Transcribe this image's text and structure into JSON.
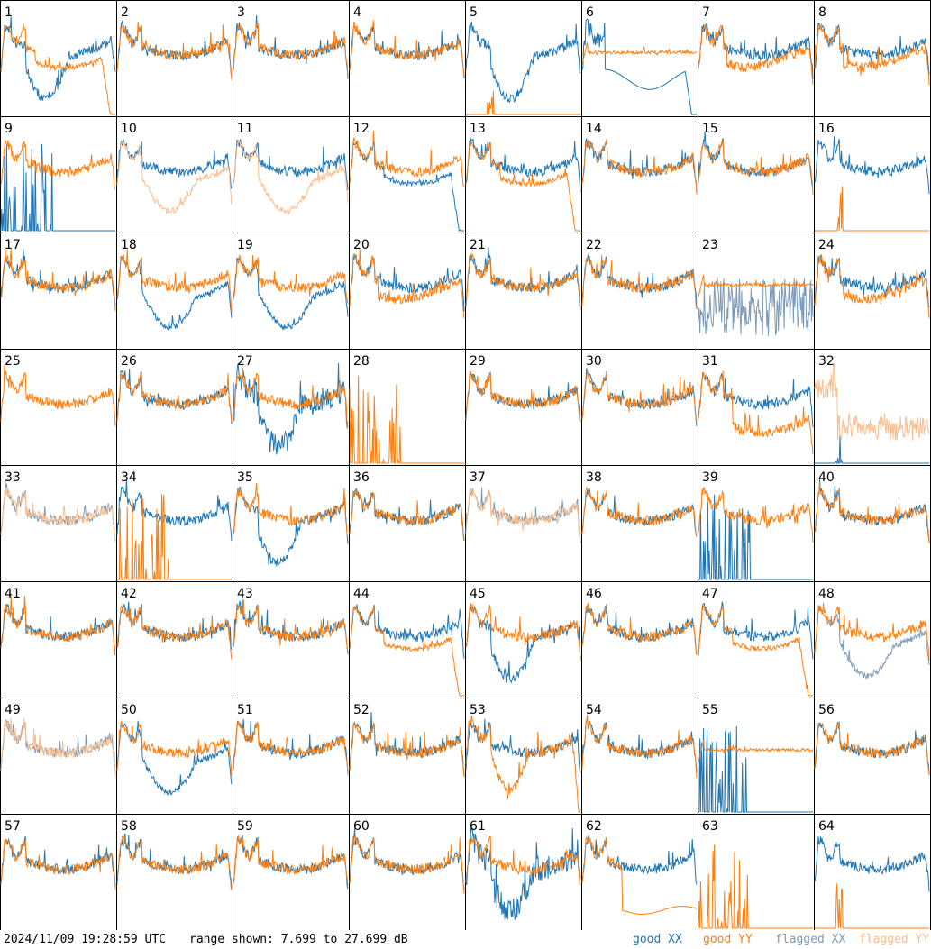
{
  "footer": {
    "timestamp": "2024/11/09 19:28:59 UTC",
    "range_text": "range shown: 7.699 to 27.699 dB"
  },
  "legend": [
    {
      "label": "good XX",
      "color": "#1f77b4"
    },
    {
      "label": "good YY",
      "color": "#ff7f0e"
    },
    {
      "label": "flagged XX",
      "color": "#7d9bb8"
    },
    {
      "label": "flagged YY",
      "color": "#f9bf8f"
    }
  ],
  "chart_data": {
    "type": "line",
    "layout": "8x8 small multiples",
    "ylim": [
      7.699,
      27.699
    ],
    "yunit": "dB",
    "series_keys": [
      "good XX",
      "good YY",
      "flagged XX",
      "flagged YY"
    ],
    "panels": [
      {
        "label": "1",
        "xx": "xx_dip",
        "yy": "yy_sag_dropoff"
      },
      {
        "label": "2",
        "xx": "normal",
        "yy": "normal"
      },
      {
        "label": "3",
        "xx": "normal",
        "yy": "normal"
      },
      {
        "label": "4",
        "xx": "normal",
        "yy": "normal"
      },
      {
        "label": "5",
        "xx": "xx_dip",
        "yy": "dead_spike"
      },
      {
        "label": "6",
        "xx": "xx_deep_dropoff",
        "yy": "high_flat"
      },
      {
        "label": "7",
        "xx": "normal",
        "yy": "sagging"
      },
      {
        "label": "8",
        "xx": "normal",
        "yy": "sagging"
      },
      {
        "label": "9",
        "xx": "dead_spikes",
        "yy": "normal"
      },
      {
        "label": "10",
        "xx": "normal",
        "yy": "flagged_sag"
      },
      {
        "label": "11",
        "xx": "normal",
        "yy": "flagged_sag"
      },
      {
        "label": "12",
        "xx": "xx_dropoff",
        "yy": "normal"
      },
      {
        "label": "13",
        "xx": "normal",
        "yy": "yy_dropoff"
      },
      {
        "label": "14",
        "xx": "normal",
        "yy": "normal"
      },
      {
        "label": "15",
        "xx": "normal",
        "yy": "normal"
      },
      {
        "label": "16",
        "xx": "normal",
        "yy": "dead_spike"
      },
      {
        "label": "17",
        "xx": "normal",
        "yy": "normal"
      },
      {
        "label": "18",
        "xx": "xx_low_dip",
        "yy": "normal"
      },
      {
        "label": "19",
        "xx": "xx_low_dip",
        "yy": "normal"
      },
      {
        "label": "20",
        "xx": "normal",
        "yy": "sagging"
      },
      {
        "label": "21",
        "xx": "normal",
        "yy": "normal"
      },
      {
        "label": "22",
        "xx": "normal",
        "yy": "normal"
      },
      {
        "label": "23",
        "xx": "flagged_noise",
        "yy": "high_flat"
      },
      {
        "label": "24",
        "xx": "normal",
        "yy": "sagging"
      },
      {
        "label": "25",
        "xx": "absent",
        "yy": "normal"
      },
      {
        "label": "26",
        "xx": "normal",
        "yy": "normal"
      },
      {
        "label": "27",
        "xx": "xx_dip_noisy",
        "yy": "normal"
      },
      {
        "label": "28",
        "xx": "absent",
        "yy": "dead_spikes"
      },
      {
        "label": "29",
        "xx": "normal",
        "yy": "normal"
      },
      {
        "label": "30",
        "xx": "normal",
        "yy": "normal"
      },
      {
        "label": "31",
        "xx": "normal",
        "yy": "low_sag"
      },
      {
        "label": "32",
        "xx": "dead_spike",
        "yy": "flagged_noisy"
      },
      {
        "label": "33",
        "xx": "flagged",
        "yy": "flagged"
      },
      {
        "label": "34",
        "xx": "normal",
        "yy": "dead_spikes"
      },
      {
        "label": "35",
        "xx": "xx_dip",
        "yy": "normal"
      },
      {
        "label": "36",
        "xx": "normal",
        "yy": "normal"
      },
      {
        "label": "37",
        "xx": "flagged",
        "yy": "flagged"
      },
      {
        "label": "38",
        "xx": "normal",
        "yy": "normal"
      },
      {
        "label": "39",
        "xx": "dead_spikes",
        "yy": "normal"
      },
      {
        "label": "40",
        "xx": "normal",
        "yy": "normal"
      },
      {
        "label": "41",
        "xx": "normal",
        "yy": "normal"
      },
      {
        "label": "42",
        "xx": "normal",
        "yy": "normal"
      },
      {
        "label": "43",
        "xx": "normal",
        "yy": "normal"
      },
      {
        "label": "44",
        "xx": "normal",
        "yy": "yy_dropoff"
      },
      {
        "label": "45",
        "xx": "xx_dip",
        "yy": "normal"
      },
      {
        "label": "46",
        "xx": "normal",
        "yy": "normal"
      },
      {
        "label": "47",
        "xx": "normal",
        "yy": "yy_dropoff"
      },
      {
        "label": "48",
        "xx": "flagged_sag",
        "yy": "normal"
      },
      {
        "label": "49",
        "xx": "flagged",
        "yy": "flagged"
      },
      {
        "label": "50",
        "xx": "xx_low_dip",
        "yy": "normal"
      },
      {
        "label": "51",
        "xx": "normal",
        "yy": "normal"
      },
      {
        "label": "52",
        "xx": "normal",
        "yy": "normal"
      },
      {
        "label": "53",
        "xx": "normal",
        "yy": "yy_dip_dropoff"
      },
      {
        "label": "54",
        "xx": "normal",
        "yy": "normal"
      },
      {
        "label": "55",
        "xx": "dead_spikes",
        "yy": "high_flat"
      },
      {
        "label": "56",
        "xx": "normal",
        "yy": "normal"
      },
      {
        "label": "57",
        "xx": "normal",
        "yy": "normal"
      },
      {
        "label": "58",
        "xx": "normal",
        "yy": "normal"
      },
      {
        "label": "59",
        "xx": "normal",
        "yy": "normal"
      },
      {
        "label": "60",
        "xx": "normal",
        "yy": "normal"
      },
      {
        "label": "61",
        "xx": "xx_dip_noisy",
        "yy": "normal"
      },
      {
        "label": "62",
        "xx": "normal",
        "yy": "yy_low_sag"
      },
      {
        "label": "63",
        "xx": "absent",
        "yy": "dead_spikes"
      },
      {
        "label": "64",
        "xx": "normal",
        "yy": "dead_spike"
      }
    ]
  }
}
